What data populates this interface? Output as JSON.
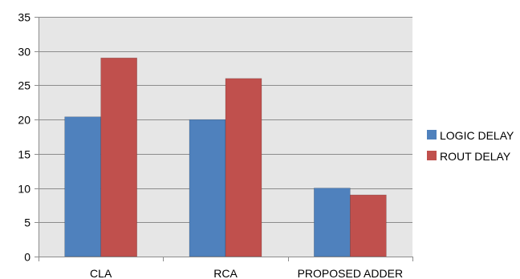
{
  "chart_data": {
    "type": "bar",
    "categories": [
      "CLA",
      "RCA",
      "PROPOSED ADDER"
    ],
    "series": [
      {
        "name": "LOGIC DELAY",
        "values": [
          20.4,
          20,
          10
        ],
        "color": "#4F81BD"
      },
      {
        "name": "ROUT DELAY",
        "values": [
          29,
          26,
          9
        ],
        "color": "#C0504D"
      }
    ],
    "title": "",
    "xlabel": "",
    "ylabel": "",
    "ylim": [
      0,
      35
    ],
    "yticks": [
      "0",
      "5",
      "10",
      "15",
      "20",
      "25",
      "30",
      "35"
    ],
    "grid": true,
    "legend_position": "right",
    "plot_background": "#E6E6E6",
    "gridline_color": "#8C8C8C"
  }
}
